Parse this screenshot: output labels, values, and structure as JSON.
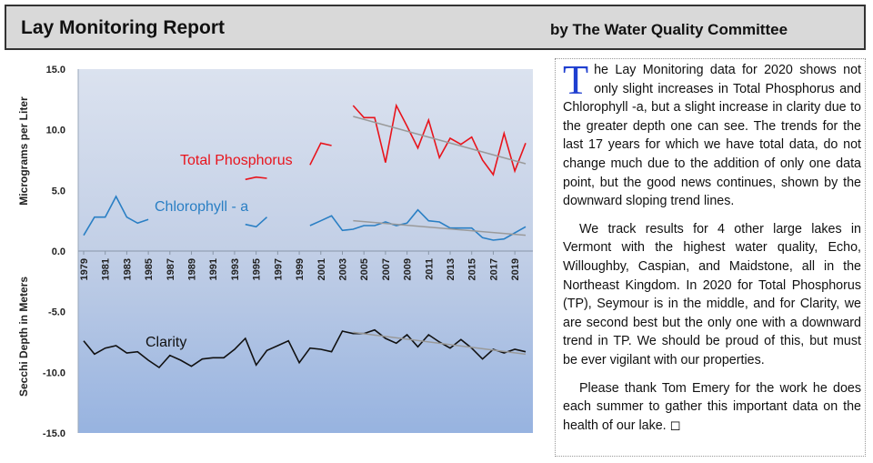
{
  "header": {
    "title": "Lay Monitoring Report",
    "subtitle": "by The Water Quality Committee"
  },
  "article": {
    "dropcap": "T",
    "p1": "he Lay Monitoring data for 2020 shows not only slight increases in Total Phosphorus and Chlorophyll -a, but a slight increase in clarity due to the greater depth one can see. The trends for the last 17 years for which we have total data, do not change much due to the addition of only one data point, but the good news continues, shown by the downward sloping  trend lines.",
    "p2": "We track results for 4 other large lakes in Vermont with the highest water quality, Echo, Willoughby, Caspian, and Maidstone, all in the Northeast Kingdom. In 2020 for Total Phosphorus (TP), Seymour is in the middle, and for Clarity, we are second best but the only one with a downward trend in TP. We should be proud of this, but must be ever vigilant with our properties.",
    "p3": "Please thank Tom Emery for the work he does each summer to gather this important data on the health of our lake. ◻"
  },
  "chart_data": {
    "type": "line",
    "ylabel_top": "Micrograms per Liter",
    "ylabel_bottom": "Secchi Depth in Meters",
    "ylim": [
      -15,
      15
    ],
    "yticks": [
      "15.0",
      "10.0",
      "5.0",
      "0.0",
      "-5.0",
      "-10.0",
      "-15.0"
    ],
    "ytick_values": [
      15,
      10,
      5,
      0,
      -5,
      -10,
      -15
    ],
    "xticks": [
      "1979",
      "1981",
      "1983",
      "1985",
      "1987",
      "1989",
      "1991",
      "1993",
      "1995",
      "1997",
      "1999",
      "2001",
      "2003",
      "2005",
      "2007",
      "2009",
      "2011",
      "2013",
      "2015",
      "2017",
      "2019"
    ],
    "x_range": [
      1979,
      2020
    ],
    "series": [
      {
        "name": "Total Phosphorus",
        "color": "#e8141c",
        "segments": [
          [
            [
              1994,
              5.9
            ],
            [
              1995,
              6.1
            ],
            [
              1996,
              6.0
            ]
          ],
          [
            [
              2000,
              7.1
            ],
            [
              2001,
              8.9
            ],
            [
              2002,
              8.7
            ]
          ],
          [
            [
              2004,
              12.0
            ],
            [
              2005,
              11.0
            ],
            [
              2006,
              11.0
            ],
            [
              2007,
              7.3
            ],
            [
              2008,
              12.0
            ],
            [
              2009,
              10.3
            ],
            [
              2010,
              8.5
            ],
            [
              2011,
              10.8
            ],
            [
              2012,
              7.7
            ],
            [
              2013,
              9.3
            ],
            [
              2014,
              8.8
            ],
            [
              2015,
              9.4
            ],
            [
              2016,
              7.5
            ],
            [
              2017,
              6.3
            ],
            [
              2018,
              9.7
            ],
            [
              2019,
              6.6
            ],
            [
              2020,
              8.9
            ]
          ]
        ],
        "trend": [
          [
            2004,
            11.1
          ],
          [
            2020,
            7.2
          ]
        ]
      },
      {
        "name": "Chlorophyll - a",
        "color": "#2a7fc4",
        "segments": [
          [
            [
              1979,
              1.3
            ],
            [
              1980,
              2.8
            ],
            [
              1981,
              2.8
            ],
            [
              1982,
              4.5
            ],
            [
              1983,
              2.8
            ],
            [
              1984,
              2.3
            ],
            [
              1985,
              2.6
            ]
          ],
          [
            [
              1994,
              2.2
            ],
            [
              1995,
              2.0
            ],
            [
              1996,
              2.8
            ]
          ],
          [
            [
              2000,
              2.1
            ],
            [
              2001,
              2.5
            ],
            [
              2002,
              2.9
            ],
            [
              2003,
              1.7
            ],
            [
              2004,
              1.8
            ],
            [
              2005,
              2.1
            ],
            [
              2006,
              2.1
            ],
            [
              2007,
              2.4
            ],
            [
              2008,
              2.1
            ],
            [
              2009,
              2.3
            ],
            [
              2010,
              3.4
            ],
            [
              2011,
              2.5
            ],
            [
              2012,
              2.4
            ],
            [
              2013,
              1.9
            ],
            [
              2014,
              1.9
            ],
            [
              2015,
              1.9
            ],
            [
              2016,
              1.1
            ],
            [
              2017,
              0.9
            ],
            [
              2018,
              1.0
            ],
            [
              2019,
              1.5
            ],
            [
              2020,
              2.0
            ]
          ]
        ],
        "trend": [
          [
            2004,
            2.5
          ],
          [
            2020,
            1.3
          ]
        ]
      },
      {
        "name": "Clarity",
        "color": "#111111",
        "segments": [
          [
            [
              1979,
              -7.4
            ],
            [
              1980,
              -8.5
            ],
            [
              1981,
              -8.0
            ],
            [
              1982,
              -7.8
            ],
            [
              1983,
              -8.4
            ],
            [
              1984,
              -8.3
            ],
            [
              1985,
              -9.0
            ],
            [
              1986,
              -9.6
            ],
            [
              1987,
              -8.6
            ],
            [
              1988,
              -9.0
            ],
            [
              1989,
              -9.5
            ],
            [
              1990,
              -8.9
            ],
            [
              1991,
              -8.8
            ],
            [
              1992,
              -8.8
            ],
            [
              1993,
              -8.1
            ],
            [
              1994,
              -7.2
            ],
            [
              1995,
              -9.4
            ],
            [
              1996,
              -8.2
            ],
            [
              1997,
              -7.8
            ],
            [
              1998,
              -7.4
            ],
            [
              1999,
              -9.2
            ],
            [
              2000,
              -8.0
            ],
            [
              2001,
              -8.1
            ],
            [
              2002,
              -8.3
            ],
            [
              2003,
              -6.6
            ],
            [
              2004,
              -6.8
            ],
            [
              2005,
              -6.8
            ],
            [
              2006,
              -6.5
            ],
            [
              2007,
              -7.2
            ],
            [
              2008,
              -7.6
            ],
            [
              2009,
              -6.9
            ],
            [
              2010,
              -7.9
            ],
            [
              2011,
              -6.9
            ],
            [
              2012,
              -7.5
            ],
            [
              2013,
              -8.0
            ],
            [
              2014,
              -7.3
            ],
            [
              2015,
              -8.0
            ],
            [
              2016,
              -8.9
            ],
            [
              2017,
              -8.1
            ],
            [
              2018,
              -8.4
            ],
            [
              2019,
              -8.1
            ],
            [
              2020,
              -8.3
            ]
          ]
        ],
        "trend": [
          [
            2004,
            -6.7
          ],
          [
            2020,
            -8.5
          ]
        ]
      }
    ],
    "labels": {
      "tp": "Total Phosphorus",
      "chl": "Chlorophyll - a",
      "clarity": "Clarity"
    }
  }
}
